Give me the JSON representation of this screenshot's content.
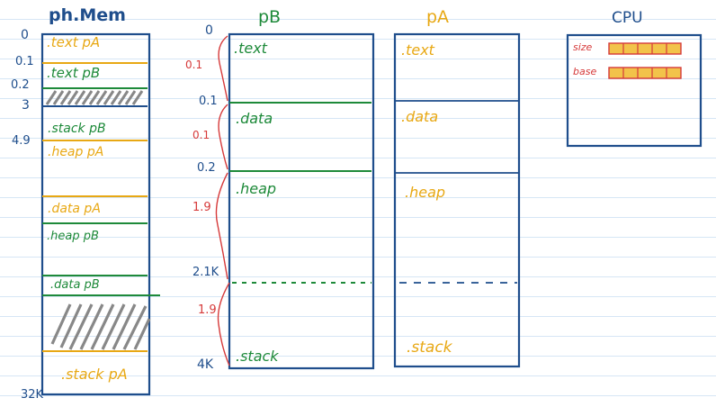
{
  "colors": {
    "blue": "#1f4e8c",
    "green": "#1e8a3a",
    "yellow": "#e8a814",
    "red": "#d63a3a"
  },
  "phys_mem": {
    "title": "ph.Mem",
    "addresses": [
      "0",
      "0.1",
      "0.2",
      "3",
      "4.9",
      "32K"
    ],
    "regions": [
      ".text pA",
      ".text pB",
      ".stack pB",
      ".heap pA",
      ".data pA",
      ".heap pB",
      ".data pB",
      ".stack pA"
    ]
  },
  "pB": {
    "title": "pB",
    "addresses": [
      "0",
      "0.1",
      "0.2",
      "2.1K",
      "4K"
    ],
    "sizes": [
      "0.1",
      "0.1",
      "1.9",
      "1.9"
    ],
    "segments": [
      ".text",
      ".data",
      ".heap",
      ".stack"
    ]
  },
  "pA": {
    "title": "pA",
    "segments": [
      ".text",
      ".data",
      ".heap",
      ".stack"
    ]
  },
  "cpu": {
    "title": "CPU",
    "registers": [
      "size",
      "base"
    ]
  }
}
